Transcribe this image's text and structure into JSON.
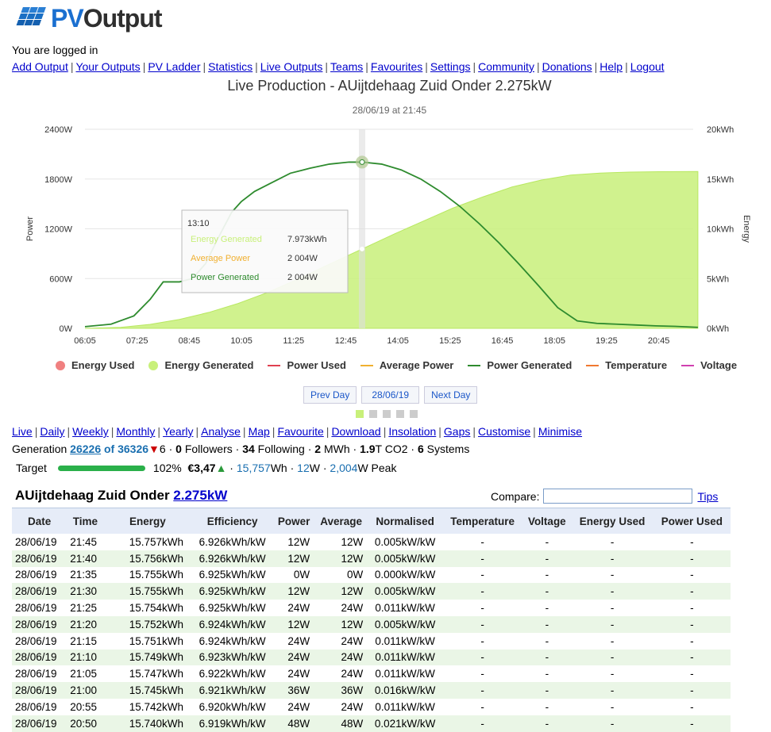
{
  "brand": {
    "name_pv": "PV",
    "name_out": "Output"
  },
  "status": "You are logged in",
  "topnav": [
    "Add Output",
    "Your Outputs",
    "PV Ladder",
    "Statistics",
    "Live Outputs",
    "Teams",
    "Favourites",
    "Settings",
    "Community",
    "Donations",
    "Help",
    "Logout"
  ],
  "chart_title": "Live Production - AUijtdehaag Zuid Onder 2.275kW",
  "chart_subtitle": "28/06/19 at 21:45",
  "chart_data": {
    "type": "area",
    "x_ticks": [
      "06:05",
      "07:25",
      "08:45",
      "10:05",
      "11:25",
      "12:45",
      "14:05",
      "15:25",
      "16:45",
      "18:05",
      "19:25",
      "20:45"
    ],
    "y_left_label": "Power",
    "y_left_ticks": [
      "0W",
      "600W",
      "1200W",
      "1800W",
      "2400W"
    ],
    "y_left_range": [
      0,
      2400
    ],
    "y_right_label": "Energy",
    "y_right_ticks": [
      "0kWh",
      "5kWh",
      "10kWh",
      "15kWh",
      "20kWh"
    ],
    "y_right_range": [
      0,
      20
    ],
    "series": [
      {
        "name": "Energy Generated",
        "unit": "kWh",
        "color": "#c8f07a",
        "kind": "area",
        "x": [
          "06:05",
          "07:00",
          "07:45",
          "08:30",
          "09:15",
          "10:00",
          "10:45",
          "11:30",
          "12:15",
          "13:10",
          "14:00",
          "14:45",
          "15:30",
          "16:15",
          "17:00",
          "17:45",
          "18:30",
          "19:15",
          "20:00",
          "20:45",
          "21:45"
        ],
        "values": [
          0.0,
          0.1,
          0.4,
          0.9,
          1.6,
          2.5,
          3.6,
          4.9,
          6.3,
          7.973,
          9.5,
          10.8,
          12.1,
          13.2,
          14.2,
          14.9,
          15.4,
          15.6,
          15.7,
          15.74,
          15.757
        ]
      },
      {
        "name": "Power Generated",
        "unit": "W",
        "color": "#2e8b2e",
        "kind": "line",
        "x": [
          "06:05",
          "06:45",
          "07:20",
          "07:45",
          "08:05",
          "08:30",
          "08:50",
          "09:10",
          "09:30",
          "09:50",
          "10:05",
          "10:25",
          "10:50",
          "11:20",
          "11:50",
          "12:20",
          "12:50",
          "13:10",
          "13:40",
          "14:10",
          "14:40",
          "15:10",
          "15:40",
          "16:10",
          "16:40",
          "17:10",
          "17:40",
          "18:10",
          "18:40",
          "19:10",
          "19:40",
          "20:10",
          "20:40",
          "21:10",
          "21:45"
        ],
        "values": [
          20,
          50,
          150,
          350,
          560,
          560,
          600,
          780,
          1100,
          1400,
          1530,
          1650,
          1750,
          1870,
          1930,
          1980,
          2004,
          2004,
          1980,
          1910,
          1800,
          1650,
          1470,
          1260,
          1030,
          780,
          520,
          250,
          90,
          60,
          50,
          40,
          30,
          24,
          12
        ]
      }
    ],
    "tooltip": {
      "time": "13:10",
      "rows": [
        {
          "label": "Energy Generated",
          "value": "7.973kWh",
          "color": "#c8f07a"
        },
        {
          "label": "Average Power",
          "value": "2 004W",
          "color": "#f0b030"
        },
        {
          "label": "Power Generated",
          "value": "2 004W",
          "color": "#2e8b2e"
        }
      ]
    },
    "legend": [
      {
        "label": "Energy Used",
        "color": "#f08080",
        "shape": "dot"
      },
      {
        "label": "Energy Generated",
        "color": "#c8f07a",
        "shape": "dot"
      },
      {
        "label": "Power Used",
        "color": "#e04050",
        "shape": "line"
      },
      {
        "label": "Average Power",
        "color": "#f0b030",
        "shape": "line"
      },
      {
        "label": "Power Generated",
        "color": "#2e8b2e",
        "shape": "line"
      },
      {
        "label": "Temperature",
        "color": "#f07830",
        "shape": "line"
      },
      {
        "label": "Voltage",
        "color": "#d040b0",
        "shape": "line"
      }
    ]
  },
  "daynav": {
    "prev": "Prev Day",
    "date": "28/06/19",
    "next": "Next Day"
  },
  "subnav": [
    "Live",
    "Daily",
    "Weekly",
    "Monthly",
    "Yearly",
    "Analyse",
    "Map",
    "Favourite",
    "Download",
    "Insolation",
    "Gaps",
    "Customise",
    "Minimise"
  ],
  "generation": {
    "label": "Generation",
    "rank": "26226",
    "of": "of 36326",
    "change": "6",
    "followers": "0",
    "followers_label": "Followers",
    "following": "34",
    "following_label": "Following",
    "mwh": "2",
    "mwh_label": "MWh",
    "co2": "1.9",
    "co2_label": "T CO2",
    "systems": "6",
    "systems_label": "Systems"
  },
  "target": {
    "label": "Target",
    "percent": "102%",
    "progress": 1.0,
    "money": "€3,47",
    "wh": "15,757",
    "wh_unit": "Wh",
    "avg": "12",
    "avg_unit": "W",
    "peak": "2,004",
    "peak_unit": "W Peak"
  },
  "system": {
    "name": "AUijtdehaag Zuid Onder",
    "size": "2.275kW"
  },
  "compare": {
    "label": "Compare:",
    "value": "",
    "tips": "Tips"
  },
  "table": {
    "headers": [
      "Date",
      "Time",
      "Energy",
      "Efficiency",
      "Power",
      "Average",
      "Normalised",
      "Temperature",
      "Voltage",
      "Energy Used",
      "Power Used"
    ],
    "rows": [
      [
        "28/06/19",
        "21:45",
        "15.757kWh",
        "6.926kWh/kW",
        "12W",
        "12W",
        "0.005kW/kW",
        "-",
        "-",
        "-",
        "-"
      ],
      [
        "28/06/19",
        "21:40",
        "15.756kWh",
        "6.926kWh/kW",
        "12W",
        "12W",
        "0.005kW/kW",
        "-",
        "-",
        "-",
        "-"
      ],
      [
        "28/06/19",
        "21:35",
        "15.755kWh",
        "6.925kWh/kW",
        "0W",
        "0W",
        "0.000kW/kW",
        "-",
        "-",
        "-",
        "-"
      ],
      [
        "28/06/19",
        "21:30",
        "15.755kWh",
        "6.925kWh/kW",
        "12W",
        "12W",
        "0.005kW/kW",
        "-",
        "-",
        "-",
        "-"
      ],
      [
        "28/06/19",
        "21:25",
        "15.754kWh",
        "6.925kWh/kW",
        "24W",
        "24W",
        "0.011kW/kW",
        "-",
        "-",
        "-",
        "-"
      ],
      [
        "28/06/19",
        "21:20",
        "15.752kWh",
        "6.924kWh/kW",
        "12W",
        "12W",
        "0.005kW/kW",
        "-",
        "-",
        "-",
        "-"
      ],
      [
        "28/06/19",
        "21:15",
        "15.751kWh",
        "6.924kWh/kW",
        "24W",
        "24W",
        "0.011kW/kW",
        "-",
        "-",
        "-",
        "-"
      ],
      [
        "28/06/19",
        "21:10",
        "15.749kWh",
        "6.923kWh/kW",
        "24W",
        "24W",
        "0.011kW/kW",
        "-",
        "-",
        "-",
        "-"
      ],
      [
        "28/06/19",
        "21:05",
        "15.747kWh",
        "6.922kWh/kW",
        "24W",
        "24W",
        "0.011kW/kW",
        "-",
        "-",
        "-",
        "-"
      ],
      [
        "28/06/19",
        "21:00",
        "15.745kWh",
        "6.921kWh/kW",
        "36W",
        "36W",
        "0.016kW/kW",
        "-",
        "-",
        "-",
        "-"
      ],
      [
        "28/06/19",
        "20:55",
        "15.742kWh",
        "6.920kWh/kW",
        "24W",
        "24W",
        "0.011kW/kW",
        "-",
        "-",
        "-",
        "-"
      ],
      [
        "28/06/19",
        "20:50",
        "15.740kWh",
        "6.919kWh/kW",
        "48W",
        "48W",
        "0.021kW/kW",
        "-",
        "-",
        "-",
        "-"
      ]
    ]
  }
}
